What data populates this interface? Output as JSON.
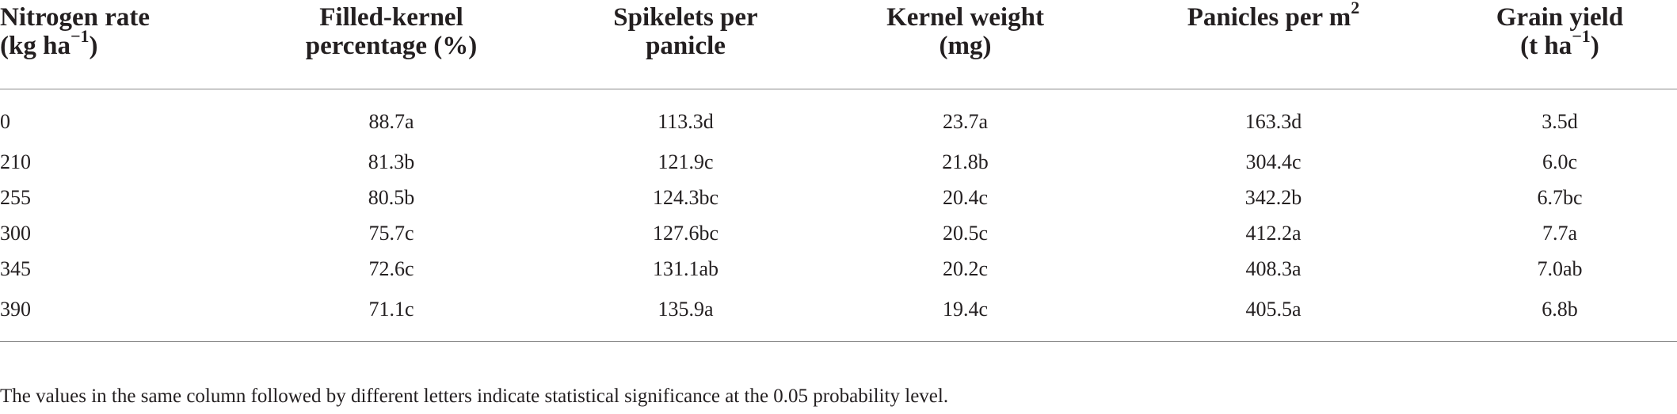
{
  "table": {
    "headers": [
      {
        "line1": "Nitrogen rate",
        "line2_pre": "(kg ha",
        "sup": "−1",
        "line2_post": ")"
      },
      {
        "line1": "Filled-kernel",
        "line2_pre": "percentage (%)",
        "sup": "",
        "line2_post": ""
      },
      {
        "line1": "Spikelets per",
        "line2_pre": "panicle",
        "sup": "",
        "line2_post": ""
      },
      {
        "line1": "Kernel weight",
        "line2_pre": "(mg)",
        "sup": "",
        "line2_post": ""
      },
      {
        "line1": "Panicles per m",
        "line1_sup": "2",
        "line2_pre": "",
        "sup": "",
        "line2_post": ""
      },
      {
        "line1": "Grain yield",
        "line2_pre": "(t ha",
        "sup": "−1",
        "line2_post": ")"
      }
    ],
    "rows": [
      [
        "0",
        "88.7a",
        "113.3d",
        "23.7a",
        "163.3d",
        "3.5d"
      ],
      [
        "210",
        "81.3b",
        "121.9c",
        "21.8b",
        "304.4c",
        "6.0c"
      ],
      [
        "255",
        "80.5b",
        "124.3bc",
        "20.4c",
        "342.2b",
        "6.7bc"
      ],
      [
        "300",
        "75.7c",
        "127.6bc",
        "20.5c",
        "412.2a",
        "7.7a"
      ],
      [
        "345",
        "72.6c",
        "131.1ab",
        "20.2c",
        "408.3a",
        "7.0ab"
      ],
      [
        "390",
        "71.1c",
        "135.9a",
        "19.4c",
        "405.5a",
        "6.8b"
      ]
    ],
    "footnote": "The values in the same column followed by different letters indicate statistical significance at the 0.05 probability level."
  }
}
